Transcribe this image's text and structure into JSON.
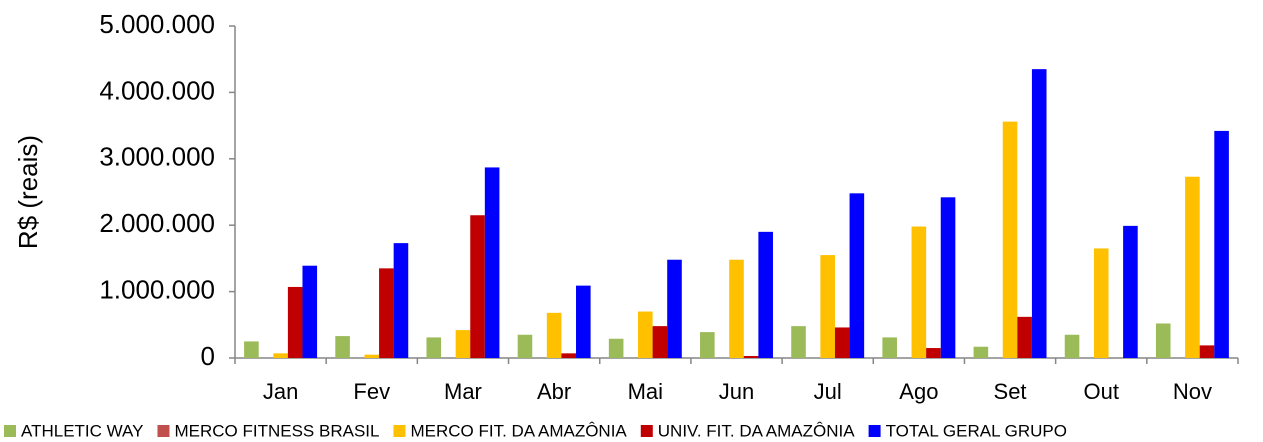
{
  "chart_data": {
    "type": "bar",
    "y_label": "R$ (reais)",
    "categories": [
      "Jan",
      "Fev",
      "Mar",
      "Abr",
      "Mai",
      "Jun",
      "Jul",
      "Ago",
      "Set",
      "Out",
      "Nov"
    ],
    "series": [
      {
        "name": "ATHLETIC WAY",
        "color": "#9bbb59",
        "values": [
          250000,
          330000,
          310000,
          350000,
          290000,
          390000,
          480000,
          310000,
          170000,
          350000,
          520000
        ]
      },
      {
        "name": "MERCO FITNESS BRASIL",
        "color": "#c0504d",
        "values": [
          0,
          0,
          0,
          0,
          0,
          0,
          0,
          0,
          0,
          0,
          0
        ]
      },
      {
        "name": "MERCO FIT. DA AMAZÔNIA",
        "color": "#ffc000",
        "values": [
          70000,
          50000,
          420000,
          680000,
          700000,
          1480000,
          1550000,
          1980000,
          3560000,
          1650000,
          2730000
        ]
      },
      {
        "name": "UNIV. FIT. DA AMAZÔNIA",
        "color": "#c00000",
        "values": [
          1070000,
          1350000,
          2150000,
          70000,
          480000,
          30000,
          460000,
          150000,
          620000,
          0,
          190000
        ]
      },
      {
        "name": "TOTAL GERAL GRUPO",
        "color": "#0000ff",
        "values": [
          1390000,
          1730000,
          2870000,
          1090000,
          1480000,
          1900000,
          2480000,
          2420000,
          4350000,
          1990000,
          3420000
        ]
      }
    ],
    "ylim": [
      0,
      5000000
    ],
    "yticks": [
      0,
      {
        "value": 1000000,
        "label": "1.000.000"
      },
      {
        "value": 2000000,
        "label": "2.000.000"
      },
      {
        "value": 3000000,
        "label": "3.000.000"
      },
      {
        "value": 4000000,
        "label": "4.000.000"
      },
      {
        "value": 5000000,
        "label": "5.000.000"
      }
    ],
    "legend": "bottom"
  }
}
